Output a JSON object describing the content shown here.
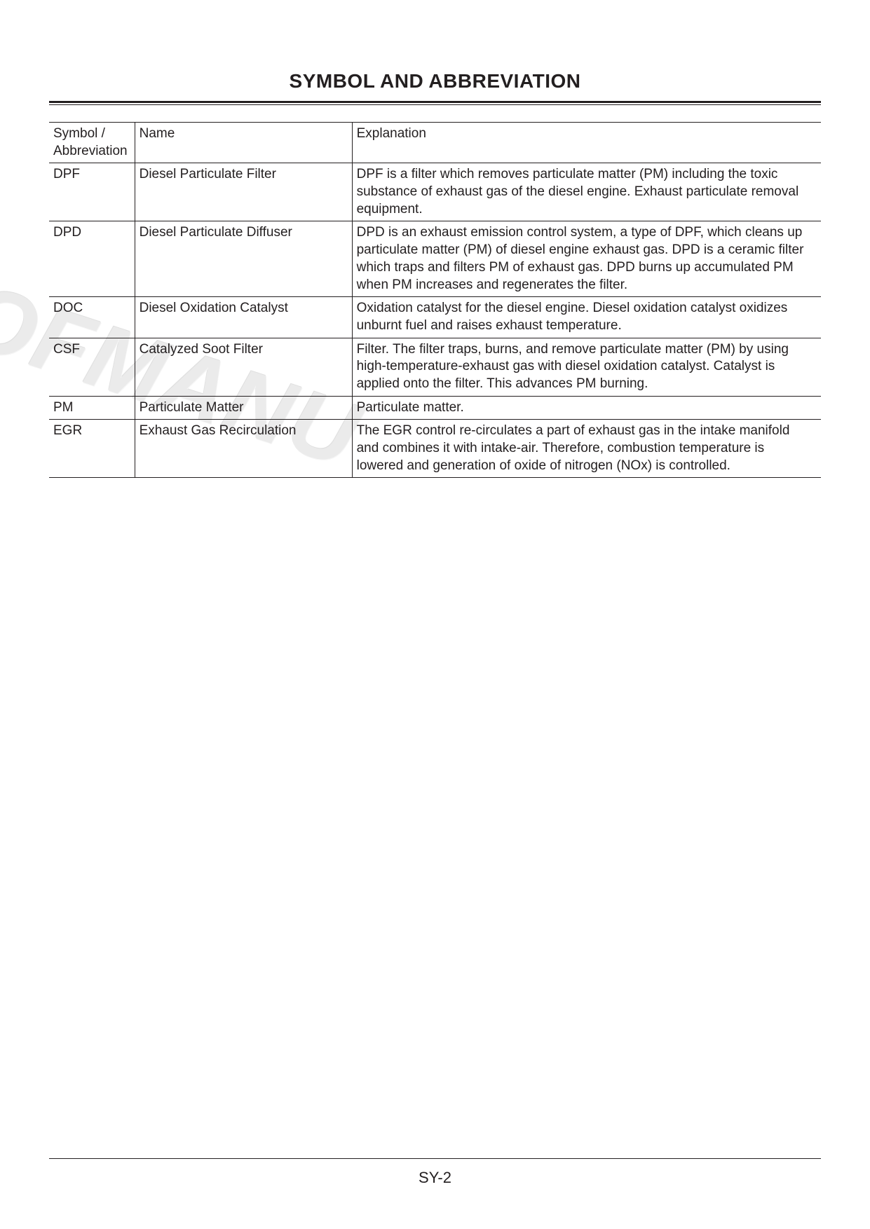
{
  "title": "SYMBOL AND ABBREVIATION",
  "columns": [
    "Symbol / Abbreviation",
    "Name",
    "Explanation"
  ],
  "rows": [
    {
      "symbol": "DPF",
      "name": "Diesel Particulate Filter",
      "explanation": "DPF is a filter which removes particulate matter (PM) including the toxic substance of exhaust gas of the diesel engine. Exhaust particulate removal equipment."
    },
    {
      "symbol": "DPD",
      "name": "Diesel Particulate Diffuser",
      "explanation": "DPD is an exhaust emission control system, a type of DPF, which cleans up particulate matter (PM) of diesel engine exhaust gas. DPD is a ceramic filter which traps and filters PM of exhaust gas. DPD burns up accumulated PM when PM increases and regenerates the filter."
    },
    {
      "symbol": "DOC",
      "name": "Diesel Oxidation Catalyst",
      "explanation": "Oxidation catalyst for the diesel engine. Diesel oxidation catalyst oxidizes unburnt fuel and raises exhaust temperature."
    },
    {
      "symbol": "CSF",
      "name": "Catalyzed Soot Filter",
      "explanation": "Filter. The filter traps, burns, and remove particulate matter (PM) by using high-temperature-exhaust gas with diesel oxidation catalyst. Catalyst is applied onto the filter. This advances PM burning."
    },
    {
      "symbol": "PM",
      "name": "Particulate Matter",
      "explanation": "Particulate matter."
    },
    {
      "symbol": "EGR",
      "name": "Exhaust Gas Recirculation",
      "explanation": "The EGR control re-circulates a part of exhaust gas in the intake manifold and combines it with intake-air. Therefore, combustion temperature is lowered and generation of oxide of nitrogen (NOx) is controlled."
    }
  ],
  "watermark": "OFMANU",
  "footer": "SY-2"
}
